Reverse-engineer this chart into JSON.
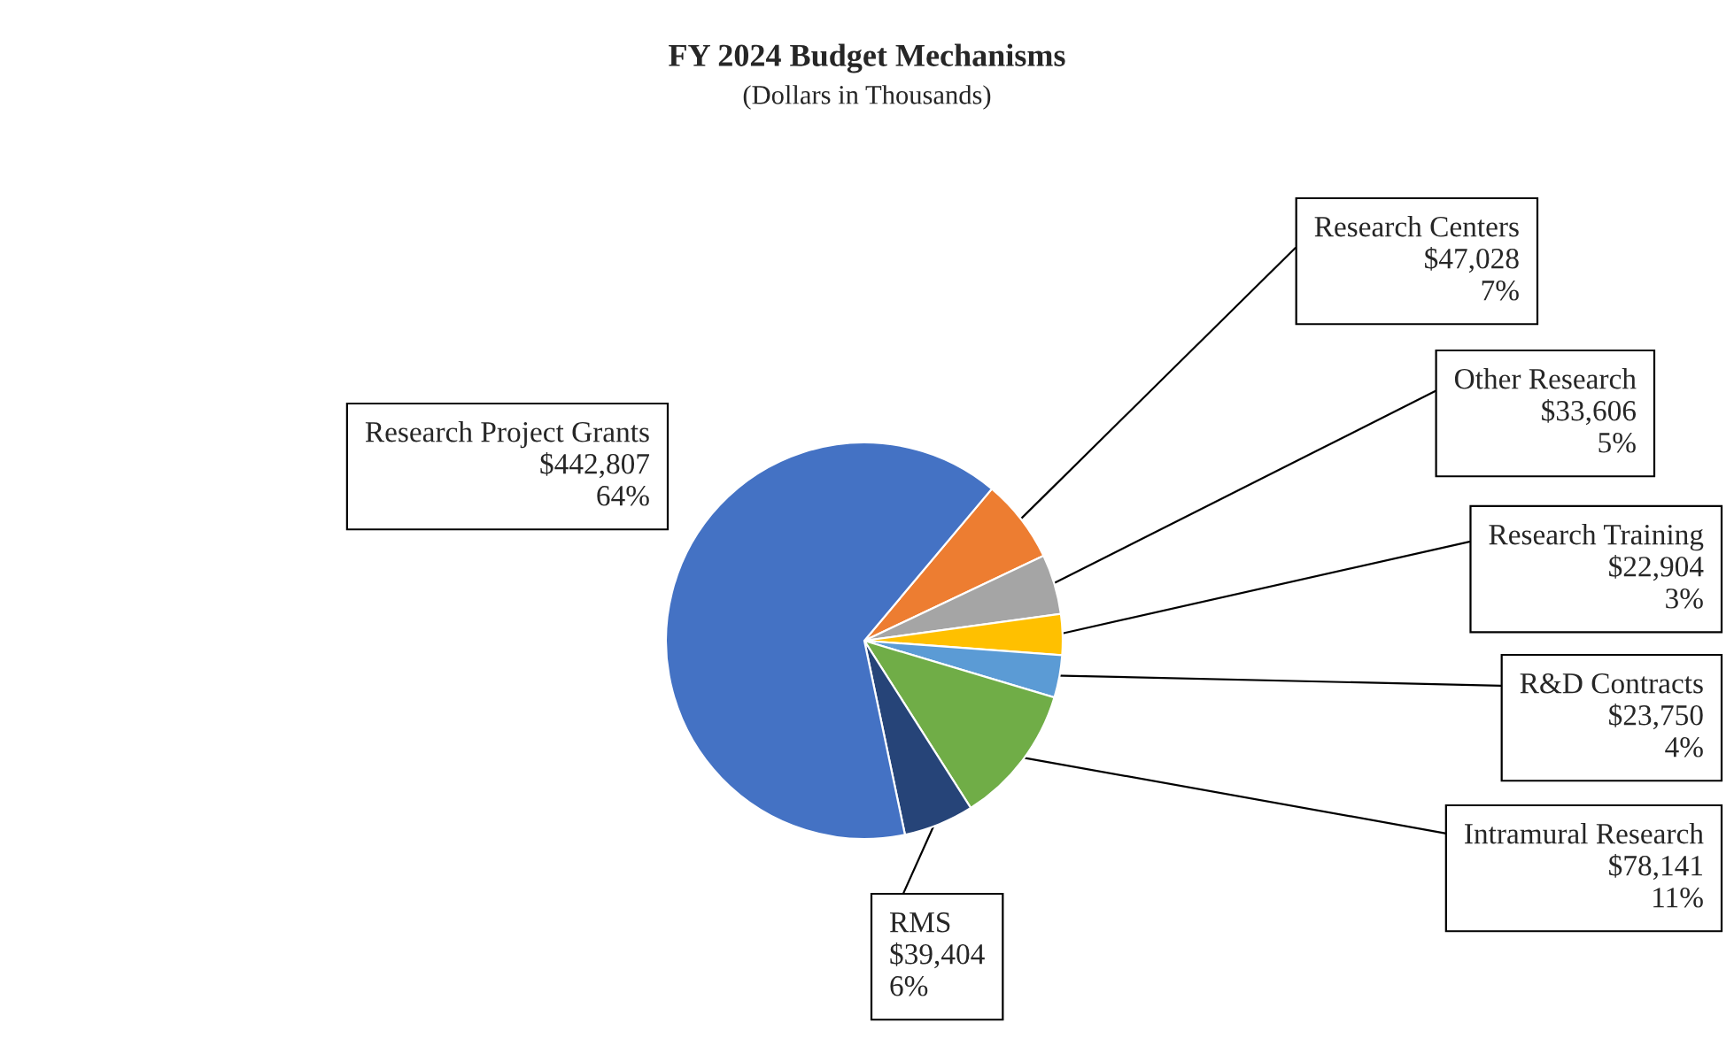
{
  "chart_data": {
    "type": "pie",
    "title": "FY 2024 Budget Mechanisms",
    "subtitle": "(Dollars in Thousands)",
    "categories": [
      "Research Centers",
      "Other Research",
      "Research Training",
      "R&D Contracts",
      "Intramural Research",
      "RMS",
      "Research Project Grants"
    ],
    "values": [
      47028,
      33606,
      22904,
      23750,
      78141,
      39404,
      442807
    ],
    "colors": [
      "#ed7d31",
      "#a5a5a5",
      "#ffc000",
      "#5b9bd5",
      "#70ad47",
      "#264478",
      "#4472c4"
    ],
    "value_labels": [
      "$47,028\n7%",
      "$33,606\n5%",
      "$22,904\n3%",
      "$23,750\n4%",
      "$78,141\n11%",
      "$39,404\n6%",
      "$442,807\n64%"
    ],
    "legend": false
  }
}
